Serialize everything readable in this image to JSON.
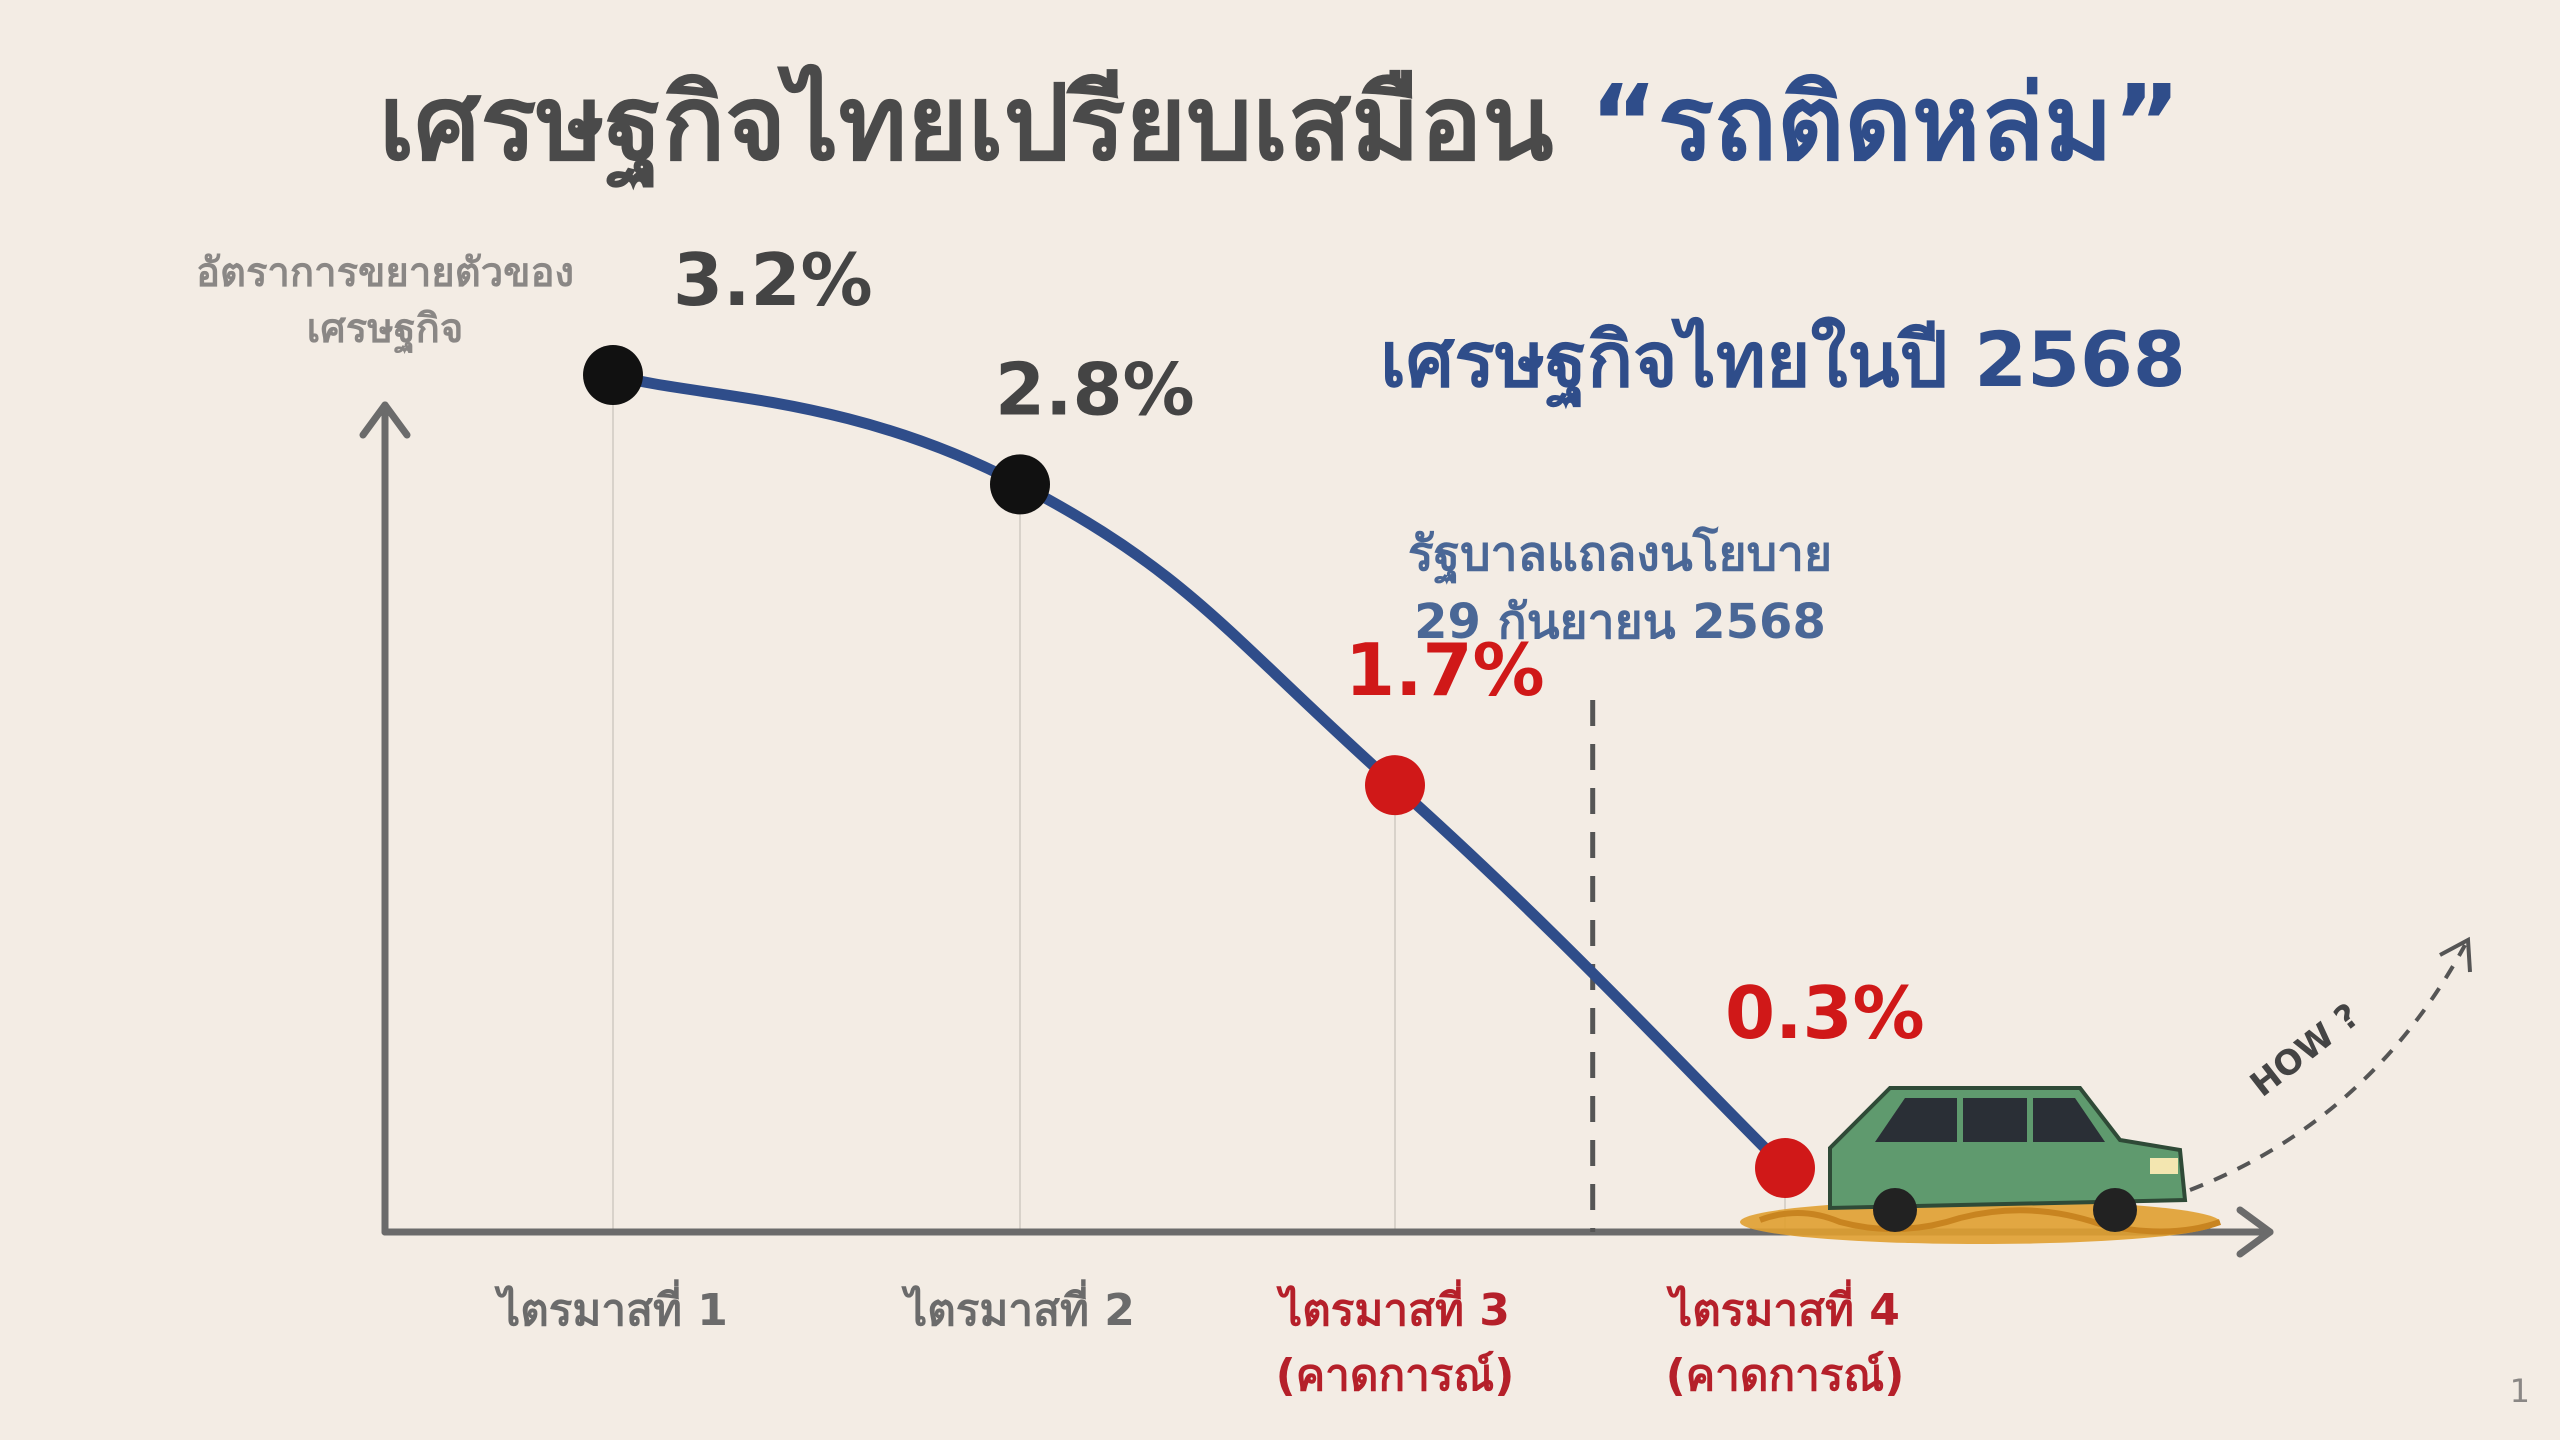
{
  "title": {
    "main": "เศรษฐกิจไทยเปรียบเสมือน",
    "accent": "“รถติดหล่ม”"
  },
  "subtitle": "เศรษฐกิจไทยในปี 2568",
  "annotation": {
    "line1": "รัฐบาลแถลงนโยบาย",
    "line2": "29 กันยายน 2568",
    "between_categories": [
      2,
      3
    ]
  },
  "extra_label": "HOW ?",
  "page_number": "1",
  "colors": {
    "title": "#4a4a4a",
    "accent": "#2f4d8a",
    "curve": "#2f4d8a",
    "actual": "#111111",
    "forecast": "#d01818",
    "axis": "#6b6b6b",
    "car_body": "#5f9a6e",
    "mud": "#e0a030"
  },
  "icons": [
    "car-stuck-in-mud-icon",
    "dashed-arrow-up-icon"
  ],
  "chart_data": {
    "type": "line",
    "ylabel": "อัตราการขยายตัวของเศรษฐกิจ",
    "xlabel": "",
    "categories": [
      {
        "label": "ไตรมาสที่ 1",
        "note": ""
      },
      {
        "label": "ไตรมาสที่ 2",
        "note": ""
      },
      {
        "label": "ไตรมาสที่ 3",
        "note": "(คาดการณ์)"
      },
      {
        "label": "ไตรมาสที่ 4",
        "note": "(คาดการณ์)"
      }
    ],
    "values": [
      3.2,
      2.8,
      1.7,
      0.3
    ],
    "data_labels": [
      "3.2%",
      "2.8%",
      "1.7%",
      "0.3%"
    ],
    "forecast": [
      false,
      false,
      true,
      true
    ],
    "ylim": [
      0,
      3.5
    ],
    "grid": false,
    "legend": "none"
  }
}
